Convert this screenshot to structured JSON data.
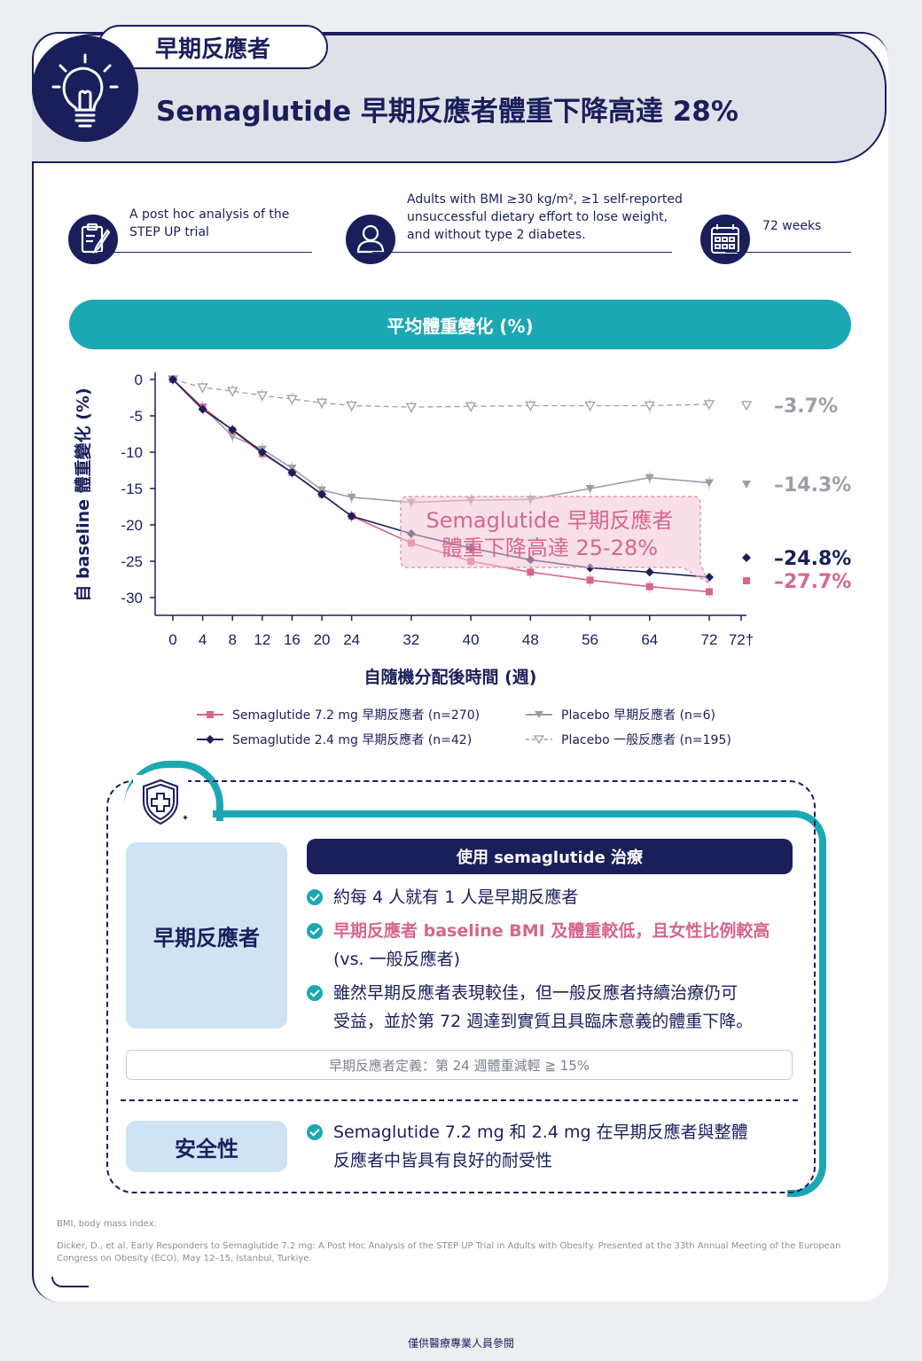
{
  "header": {
    "tab_label": "早期反應者",
    "title": "Semaglutide 早期反應者體重下降高達 28%"
  },
  "info": [
    {
      "icon": "clipboard-icon",
      "lines": [
        "A post hoc analysis of the",
        "STEP UP trial"
      ]
    },
    {
      "icon": "person-icon",
      "lines": [
        "Adults with BMI ≥30 kg/m², ≥1 self-reported",
        "unsuccessful dietary effort to lose weight,",
        "and without type 2 diabetes."
      ]
    },
    {
      "icon": "calendar-icon",
      "lines": [
        "72 weeks"
      ]
    }
  ],
  "section_pill": "平均體重變化 (%)",
  "chart_data": {
    "type": "line",
    "ylabel": "自 baseline 體重變化 (%)",
    "xlabel": "自隨機分配後時間 (週)",
    "x": [
      0,
      4,
      8,
      12,
      16,
      20,
      24,
      32,
      40,
      48,
      56,
      64,
      72
    ],
    "x_tick_labels": [
      "0",
      "4",
      "8",
      "12",
      "16",
      "20",
      "24",
      "32",
      "40",
      "48",
      "56",
      "64",
      "72",
      "72†"
    ],
    "y_ticks": [
      0,
      -5,
      -10,
      -15,
      -20,
      -25,
      -30
    ],
    "ylim": [
      -33,
      1
    ],
    "series": [
      {
        "name": "Semaglutide 7.2 mg 早期反應者 (n=270)",
        "color": "#d6668c",
        "marker": "square",
        "dashed": false,
        "values": [
          0,
          -3.8,
          -7.0,
          -10.2,
          -12.8,
          -15.8,
          -18.8,
          -22.5,
          -25.0,
          -26.5,
          -27.6,
          -28.5,
          -29.2
        ],
        "endpoint": -27.7,
        "endpoint_label": "-27.7%"
      },
      {
        "name": "Semaglutide 2.4 mg 早期反應者 (n=42)",
        "color": "#1a1f5c",
        "marker": "diamond",
        "dashed": false,
        "values": [
          0,
          -4.1,
          -6.9,
          -10.0,
          -12.8,
          -15.8,
          -18.8,
          -21.2,
          -23.2,
          -24.8,
          -25.9,
          -26.5,
          -27.2
        ],
        "endpoint": -24.8,
        "endpoint_label": "-24.8%"
      },
      {
        "name": "Placebo 早期反應者 (n=6)",
        "color": "#9a9ea8",
        "marker": "triangle-down",
        "dashed": false,
        "values": [
          0,
          -3.8,
          -7.8,
          -9.6,
          -12.2,
          -15.2,
          -16.2,
          -16.9,
          -16.6,
          -16.5,
          -15.0,
          -13.5,
          -14.2
        ],
        "endpoint": -14.3,
        "endpoint_label": "-14.3%"
      },
      {
        "name": "Placebo 一般反應者 (n=195)",
        "color": "#9a9ea8",
        "marker": "triangle-down-open",
        "dashed": true,
        "values": [
          0,
          -1.1,
          -1.6,
          -2.2,
          -2.7,
          -3.2,
          -3.6,
          -3.8,
          -3.7,
          -3.6,
          -3.6,
          -3.6,
          -3.4
        ],
        "endpoint": -3.7,
        "endpoint_label": "-3.7%"
      }
    ],
    "annotation": [
      "Semaglutide 早期反應者",
      "體重下降高達 25-28%"
    ]
  },
  "legend_order": [
    0,
    2,
    1,
    3
  ],
  "summary": {
    "left_label": "早期反應者",
    "bar_title": "使用 semaglutide 治療",
    "bullets": [
      {
        "pink": "",
        "text": [
          "約每 4 人就有 1 人是早期反應者"
        ]
      },
      {
        "pink": "早期反應者 baseline BMI 及體重較低，且女性比例較高",
        "text": [
          "(vs. 一般反應者)"
        ]
      },
      {
        "pink": "",
        "text": [
          "雖然早期反應者表現較佳，但一般反應者持續治療仍可",
          "受益，並於第 72 週達到實質且具臨床意義的體重下降。"
        ]
      }
    ],
    "definition": "早期反應者定義：第 24 週體重減輕 ≧ 15%",
    "safety_label": "安全性",
    "safety_text": [
      "Semaglutide 7.2 mg 和 2.4 mg 在早期反應者與整體",
      "反應者中皆具有良好的耐受性"
    ]
  },
  "footnotes": {
    "abbr": "BMI, body mass index.",
    "ref": [
      "Dicker, D., et al. Early Responders to Semaglutide 7.2 mg: A Post Hoc Analysis of the STEP UP Trial in Adults with Obesity. Presented at the 33th Annual Meeting of the European",
      "Congress on Obesity (ECO), May 12–15, Istanbul, Turkiye."
    ]
  },
  "bottom_note": "僅供醫療專業人員參閱"
}
